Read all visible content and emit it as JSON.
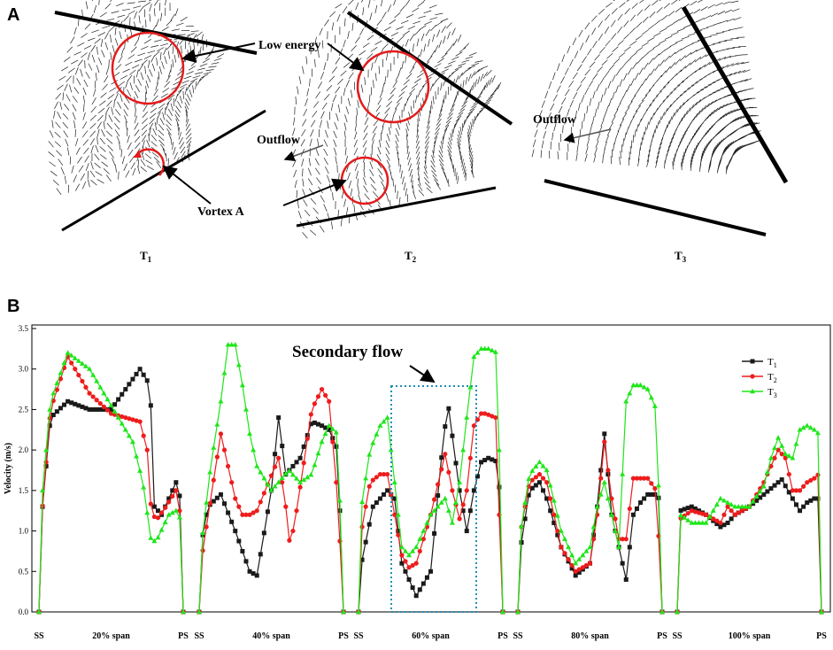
{
  "panel_a": {
    "label": "A",
    "annotations": {
      "low_energy": "Low  energy",
      "vortex_a": "Vortex A",
      "outflow_1": "Outflow",
      "outflow_2": "Outflow"
    },
    "captions": [
      "T1",
      "T2",
      "T3"
    ]
  },
  "panel_b": {
    "label": "B",
    "annotation": "Secondary flow"
  },
  "chart_data": {
    "type": "line",
    "title": "",
    "xlabel": "",
    "ylabel": "Velocity (m/s)",
    "ylim": [
      0,
      3.5
    ],
    "yticks": [
      "0.0",
      "0.5",
      "1.0",
      "1.5",
      "2.0",
      "2.5",
      "3.0",
      "3.5"
    ],
    "grid": false,
    "legend_position": "top-right",
    "segments": [
      "20% span",
      "40% span",
      "60% span",
      "80% span",
      "100% span"
    ],
    "segment_ends": [
      "SS",
      "PS"
    ],
    "x_note": "x = fractional position along each span from SS (0) to PS (1)",
    "series": [
      {
        "name": "T1",
        "color": "#1a1a1a",
        "marker": "square",
        "segments": [
          {
            "x": [
              0,
              0.02,
              0.08,
              0.2,
              0.35,
              0.5,
              0.6,
              0.7,
              0.77,
              0.8,
              0.85,
              0.9,
              0.95,
              0.98,
              1
            ],
            "y": [
              0,
              1.2,
              2.4,
              2.6,
              2.5,
              2.5,
              2.75,
              3.0,
              2.8,
              1.3,
              1.2,
              1.4,
              1.6,
              1.4,
              0
            ]
          },
          {
            "x": [
              0,
              0.02,
              0.06,
              0.15,
              0.25,
              0.35,
              0.4,
              0.5,
              0.55,
              0.6,
              0.7,
              0.78,
              0.85,
              0.9,
              0.96,
              1
            ],
            "y": [
              0,
              0.9,
              1.3,
              1.45,
              1.0,
              0.5,
              0.45,
              1.5,
              2.4,
              1.7,
              1.9,
              2.35,
              2.3,
              2.25,
              2.0,
              0
            ]
          },
          {
            "x": [
              0,
              0.02,
              0.1,
              0.2,
              0.25,
              0.3,
              0.4,
              0.5,
              0.58,
              0.62,
              0.7,
              0.75,
              0.8,
              0.85,
              0.9,
              0.97,
              1
            ],
            "y": [
              0,
              0.6,
              1.3,
              1.5,
              1.4,
              0.6,
              0.2,
              0.5,
              2.0,
              2.58,
              1.5,
              1.0,
              1.5,
              1.85,
              1.9,
              1.85,
              0
            ]
          },
          {
            "x": [
              0,
              0.02,
              0.08,
              0.15,
              0.2,
              0.3,
              0.4,
              0.5,
              0.55,
              0.6,
              0.65,
              0.7,
              0.75,
              0.8,
              0.85,
              0.9,
              0.95,
              0.98,
              1
            ],
            "y": [
              0,
              0.8,
              1.5,
              1.6,
              1.4,
              0.8,
              0.45,
              0.6,
              1.3,
              2.2,
              1.2,
              0.8,
              0.4,
              1.2,
              1.35,
              1.45,
              1.45,
              1.4,
              0
            ]
          },
          {
            "x": [
              0,
              0.02,
              0.1,
              0.2,
              0.3,
              0.35,
              0.4,
              0.5,
              0.6,
              0.7,
              0.72,
              0.8,
              0.85,
              0.9,
              0.95,
              0.98,
              1
            ],
            "y": [
              0,
              1.25,
              1.3,
              1.2,
              1.05,
              1.1,
              1.2,
              1.3,
              1.45,
              1.6,
              1.65,
              1.4,
              1.25,
              1.35,
              1.4,
              1.4,
              0
            ]
          }
        ]
      },
      {
        "name": "T2",
        "color": "#ee1c1c",
        "marker": "circle",
        "segments": [
          {
            "x": [
              0,
              0.02,
              0.08,
              0.2,
              0.35,
              0.5,
              0.6,
              0.7,
              0.75,
              0.78,
              0.82,
              0.88,
              0.95,
              0.98,
              1
            ],
            "y": [
              0,
              1.2,
              2.5,
              3.15,
              2.7,
              2.45,
              2.4,
              2.35,
              2.0,
              1.2,
              1.15,
              1.3,
              1.5,
              1.2,
              0
            ]
          },
          {
            "x": [
              0,
              0.02,
              0.08,
              0.15,
              0.2,
              0.25,
              0.3,
              0.35,
              0.4,
              0.55,
              0.6,
              0.63,
              0.68,
              0.78,
              0.85,
              0.9,
              0.96,
              1
            ],
            "y": [
              0,
              0.7,
              1.4,
              2.2,
              1.8,
              1.4,
              1.2,
              1.2,
              1.25,
              1.9,
              1.3,
              0.8,
              1.3,
              2.5,
              2.75,
              2.6,
              1.4,
              0
            ]
          },
          {
            "x": [
              0,
              0.02,
              0.08,
              0.15,
              0.2,
              0.3,
              0.35,
              0.4,
              0.5,
              0.6,
              0.65,
              0.7,
              0.75,
              0.8,
              0.85,
              0.88,
              0.95,
              1
            ],
            "y": [
              0,
              1.0,
              1.6,
              1.7,
              1.7,
              0.7,
              0.55,
              0.6,
              1.2,
              1.95,
              1.5,
              1.15,
              1.5,
              2.3,
              2.45,
              2.45,
              2.4,
              0
            ]
          },
          {
            "x": [
              0,
              0.02,
              0.08,
              0.15,
              0.2,
              0.3,
              0.4,
              0.5,
              0.55,
              0.6,
              0.65,
              0.7,
              0.75,
              0.8,
              0.85,
              0.9,
              0.96,
              1
            ],
            "y": [
              0,
              1.0,
              1.6,
              1.7,
              1.6,
              0.8,
              0.5,
              0.6,
              1.2,
              2.1,
              1.4,
              0.9,
              0.9,
              1.65,
              1.65,
              1.65,
              1.5,
              0
            ]
          },
          {
            "x": [
              0,
              0.02,
              0.1,
              0.2,
              0.3,
              0.35,
              0.4,
              0.5,
              0.6,
              0.7,
              0.75,
              0.8,
              0.85,
              0.9,
              0.95,
              0.98,
              1
            ],
            "y": [
              0,
              1.15,
              1.25,
              1.2,
              1.1,
              1.3,
              1.2,
              1.3,
              1.6,
              2.0,
              1.9,
              1.5,
              1.5,
              1.6,
              1.65,
              1.7,
              0
            ]
          }
        ]
      },
      {
        "name": "T3",
        "color": "#1ee619",
        "marker": "triangle",
        "segments": [
          {
            "x": [
              0,
              0.02,
              0.08,
              0.2,
              0.35,
              0.45,
              0.55,
              0.65,
              0.72,
              0.78,
              0.82,
              0.9,
              0.95,
              0.98,
              1
            ],
            "y": [
              0,
              1.4,
              2.6,
              3.2,
              3.0,
              2.7,
              2.4,
              2.1,
              1.6,
              0.85,
              0.9,
              1.2,
              1.25,
              1.15,
              0
            ]
          },
          {
            "x": [
              0,
              0.02,
              0.08,
              0.15,
              0.2,
              0.25,
              0.3,
              0.35,
              0.4,
              0.5,
              0.55,
              0.62,
              0.7,
              0.78,
              0.85,
              0.9,
              0.96,
              1
            ],
            "y": [
              0,
              0.9,
              1.8,
              2.6,
              3.3,
              3.3,
              2.8,
              2.2,
              1.8,
              1.5,
              1.6,
              1.75,
              1.6,
              1.7,
              2.1,
              2.3,
              2.2,
              0
            ]
          },
          {
            "x": [
              0,
              0.02,
              0.08,
              0.15,
              0.2,
              0.3,
              0.35,
              0.4,
              0.5,
              0.6,
              0.65,
              0.7,
              0.75,
              0.8,
              0.85,
              0.9,
              0.96,
              1
            ],
            "y": [
              0,
              1.3,
              2.0,
              2.3,
              2.4,
              0.8,
              0.7,
              0.8,
              1.2,
              1.4,
              1.1,
              1.6,
              2.4,
              3.15,
              3.25,
              3.25,
              3.2,
              0
            ]
          },
          {
            "x": [
              0,
              0.02,
              0.08,
              0.15,
              0.2,
              0.3,
              0.4,
              0.5,
              0.55,
              0.6,
              0.65,
              0.7,
              0.75,
              0.8,
              0.85,
              0.9,
              0.96,
              1
            ],
            "y": [
              0,
              1.0,
              1.7,
              1.85,
              1.75,
              1.0,
              0.6,
              0.8,
              1.3,
              1.6,
              1.2,
              0.8,
              2.6,
              2.8,
              2.8,
              2.75,
              2.5,
              0
            ]
          },
          {
            "x": [
              0,
              0.02,
              0.1,
              0.2,
              0.3,
              0.4,
              0.5,
              0.6,
              0.65,
              0.7,
              0.75,
              0.8,
              0.85,
              0.9,
              0.95,
              0.98,
              1
            ],
            "y": [
              0,
              1.2,
              1.1,
              1.1,
              1.4,
              1.3,
              1.3,
              1.55,
              1.9,
              2.15,
              1.95,
              1.9,
              2.25,
              2.3,
              2.25,
              2.2,
              0
            ]
          }
        ]
      }
    ]
  }
}
